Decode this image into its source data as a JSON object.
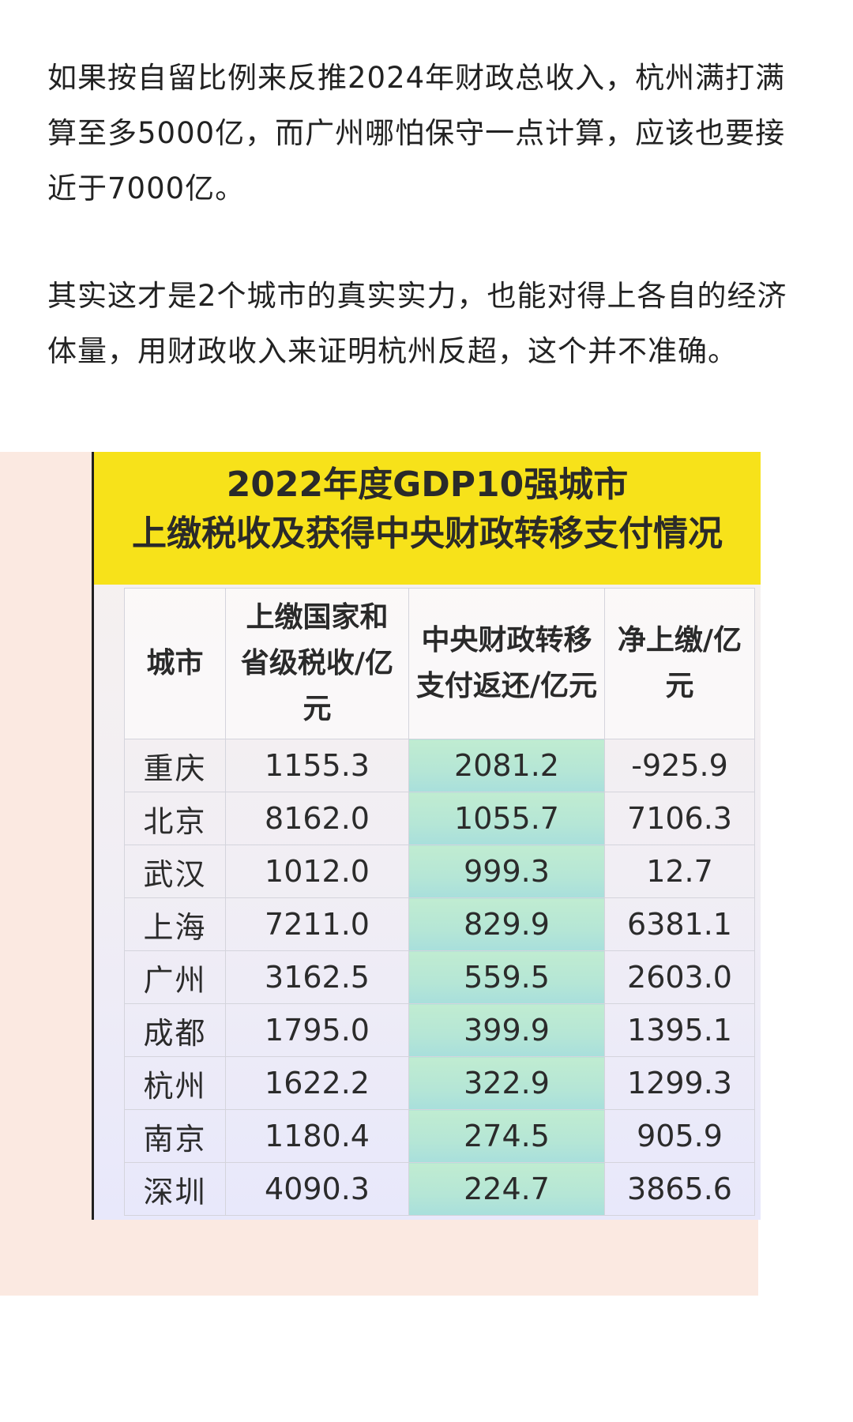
{
  "article": {
    "paragraphs": [
      "如果按自留比例来反推2024年财政总收入，杭州满打满算至多5000亿，而广州哪怕保守一点计算，应该也要接近于7000亿。",
      "其实这才是2个城市的真实实力，也能对得上各自的经济体量，用财政收入来证明杭州反超，这个并不准确。"
    ]
  },
  "figure": {
    "title_line1": "2022年度GDP10强城市",
    "title_line2": "上缴税收及获得中央财政转移支付情况",
    "title_bg_color": "#f7e21a",
    "highlight_color": "#c0ecd1"
  },
  "chart_data": {
    "type": "table",
    "title": "2022年度GDP10强城市 上缴税收及获得中央财政转移支付情况",
    "columns": [
      "城市",
      "上缴国家和省级税收/亿元",
      "中央财政转移支付返还/亿元",
      "净上缴/亿元"
    ],
    "rows": [
      {
        "city": "重庆",
        "tax": "1155.3",
        "transfer": "2081.2",
        "net": "-925.9"
      },
      {
        "city": "北京",
        "tax": "8162.0",
        "transfer": "1055.7",
        "net": "7106.3"
      },
      {
        "city": "武汉",
        "tax": "1012.0",
        "transfer": "999.3",
        "net": "12.7"
      },
      {
        "city": "上海",
        "tax": "7211.0",
        "transfer": "829.9",
        "net": "6381.1"
      },
      {
        "city": "广州",
        "tax": "3162.5",
        "transfer": "559.5",
        "net": "2603.0"
      },
      {
        "city": "成都",
        "tax": "1795.0",
        "transfer": "399.9",
        "net": "1395.1"
      },
      {
        "city": "杭州",
        "tax": "1622.2",
        "transfer": "322.9",
        "net": "1299.3"
      },
      {
        "city": "南京",
        "tax": "1180.4",
        "transfer": "274.5",
        "net": "905.9"
      },
      {
        "city": "深圳",
        "tax": "4090.3",
        "transfer": "224.7",
        "net": "3865.6"
      }
    ]
  }
}
